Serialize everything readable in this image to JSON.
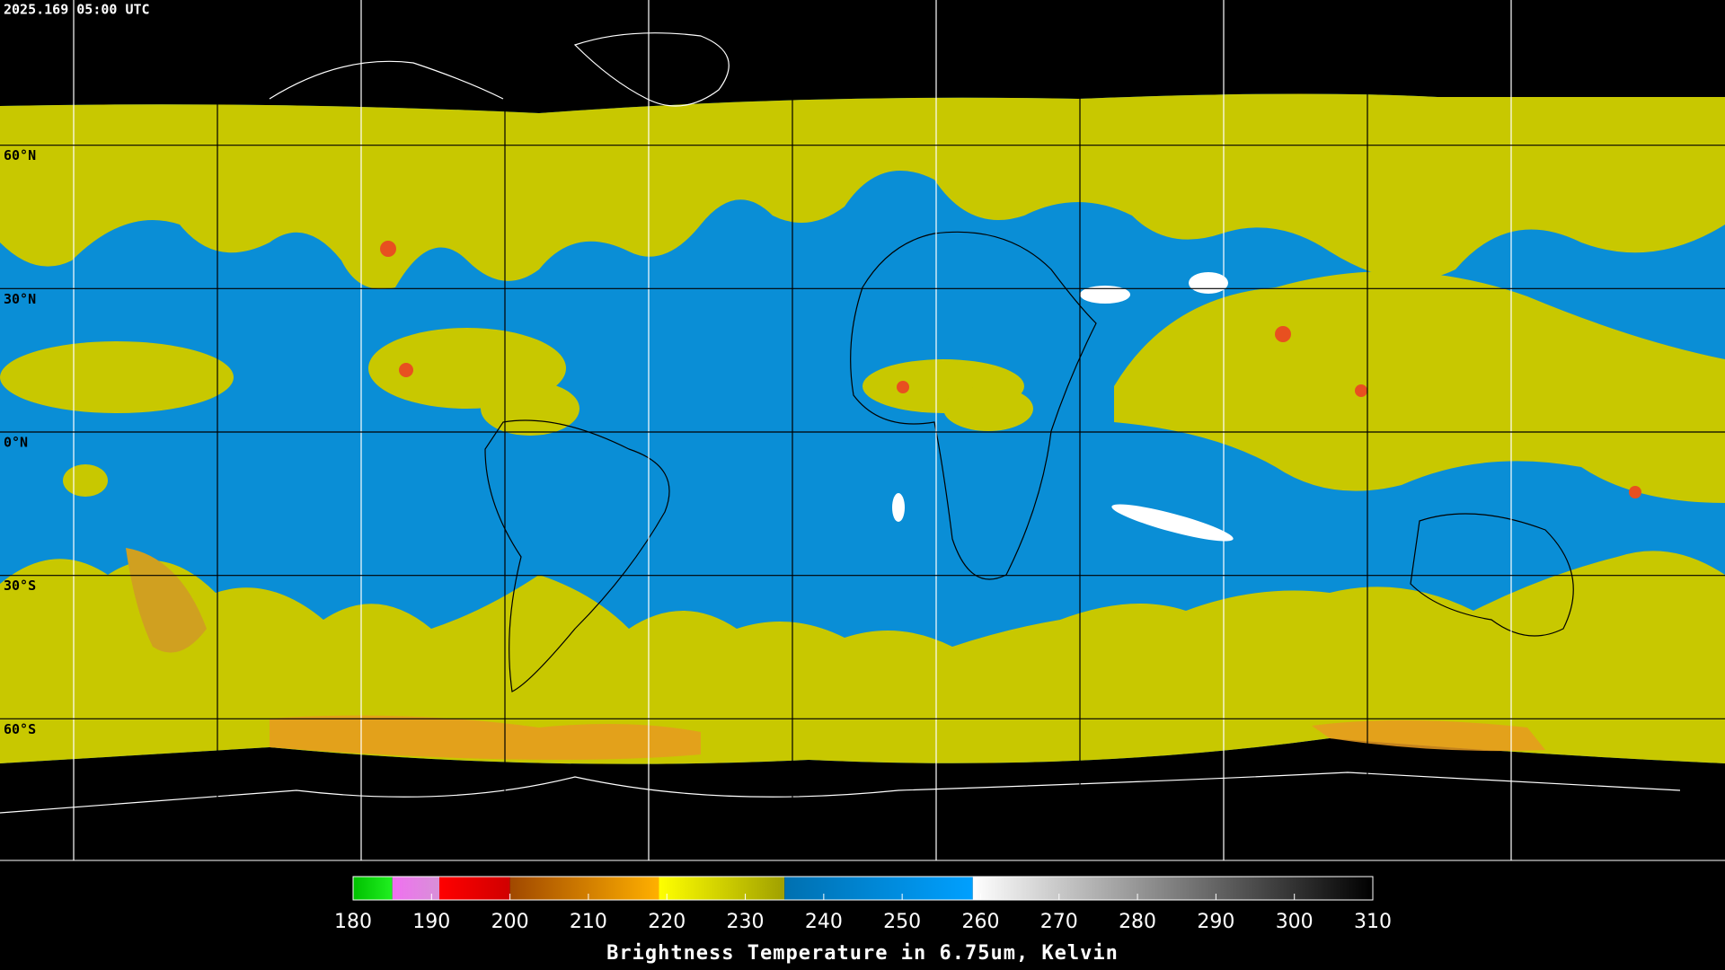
{
  "map": {
    "timestamp": "2025.169 05:00 UTC",
    "latitudes": [
      {
        "value": 60,
        "label": "60°N"
      },
      {
        "value": 30,
        "label": "30°N"
      },
      {
        "value": 0,
        "label": "0°N"
      },
      {
        "value": -30,
        "label": "30°S"
      },
      {
        "value": -60,
        "label": "60°S"
      }
    ]
  },
  "colorbar": {
    "title": "Brightness Temperature in 6.75um, Kelvin",
    "range": [
      180,
      310
    ],
    "ticks": [
      180,
      190,
      200,
      210,
      220,
      230,
      240,
      250,
      260,
      270,
      280,
      290,
      300,
      310
    ],
    "segments": [
      {
        "from": 180,
        "to": 185,
        "colors": [
          "#00c000",
          "#20f020"
        ]
      },
      {
        "from": 185,
        "to": 191,
        "colors": [
          "#f070f0",
          "#d890d8"
        ]
      },
      {
        "from": 191,
        "to": 200,
        "colors": [
          "#ff0000",
          "#d00000"
        ]
      },
      {
        "from": 200,
        "to": 219,
        "colors": [
          "#a04800",
          "#ffb000"
        ]
      },
      {
        "from": 219,
        "to": 235,
        "colors": [
          "#ffff00",
          "#a0a000"
        ]
      },
      {
        "from": 235,
        "to": 259,
        "colors": [
          "#0070b0",
          "#00a0ff"
        ]
      },
      {
        "from": 259,
        "to": 310,
        "colors": [
          "#ffffff",
          "#000000"
        ]
      }
    ]
  }
}
